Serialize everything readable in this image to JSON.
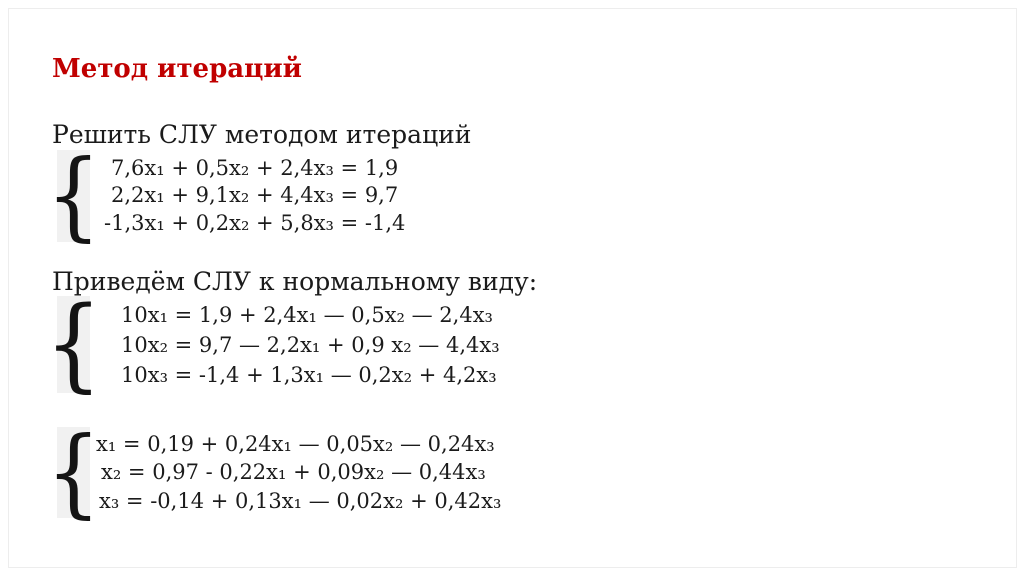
{
  "slide": {
    "title": "Метод итераций",
    "intro": "Решить СЛУ методом итераций",
    "normal_form_label": "Приведём СЛУ к нормальному виду:",
    "brace": "{",
    "system_original": {
      "lines": [
        "7,6x₁ + 0,5x₂ + 2,4x₃ = 1,9",
        "2,2x₁ + 9,1x₂ + 4,4x₃ = 9,7",
        "-1,3x₁ + 0,2x₂ + 5,8x₃ = -1,4"
      ]
    },
    "system_normal": {
      "lines": [
        "10x₁ = 1,9 + 2,4x₁ — 0,5x₂ — 2,4x₃",
        "10x₂ = 9,7 — 2,2x₁ + 0,9 x₂ — 4,4x₃",
        "10x₃ = -1,4 + 1,3x₁ — 0,2x₂ + 4,2x₃"
      ]
    },
    "system_iteration": {
      "lines": [
        "x₁ = 0,19 + 0,24x₁ — 0,05x₂ — 0,24x₃",
        "x₂ = 0,97 - 0,22x₁ + 0,09x₂ — 0,44x₃",
        "x₃ = -0,14 + 0,13x₁ — 0,02x₂ + 0,42x₃"
      ]
    },
    "colors": {
      "title_red": "#c00000",
      "body_text": "#1b1b1b",
      "brace_background": "#f1f1f1",
      "frame_border": "#ededed"
    }
  }
}
